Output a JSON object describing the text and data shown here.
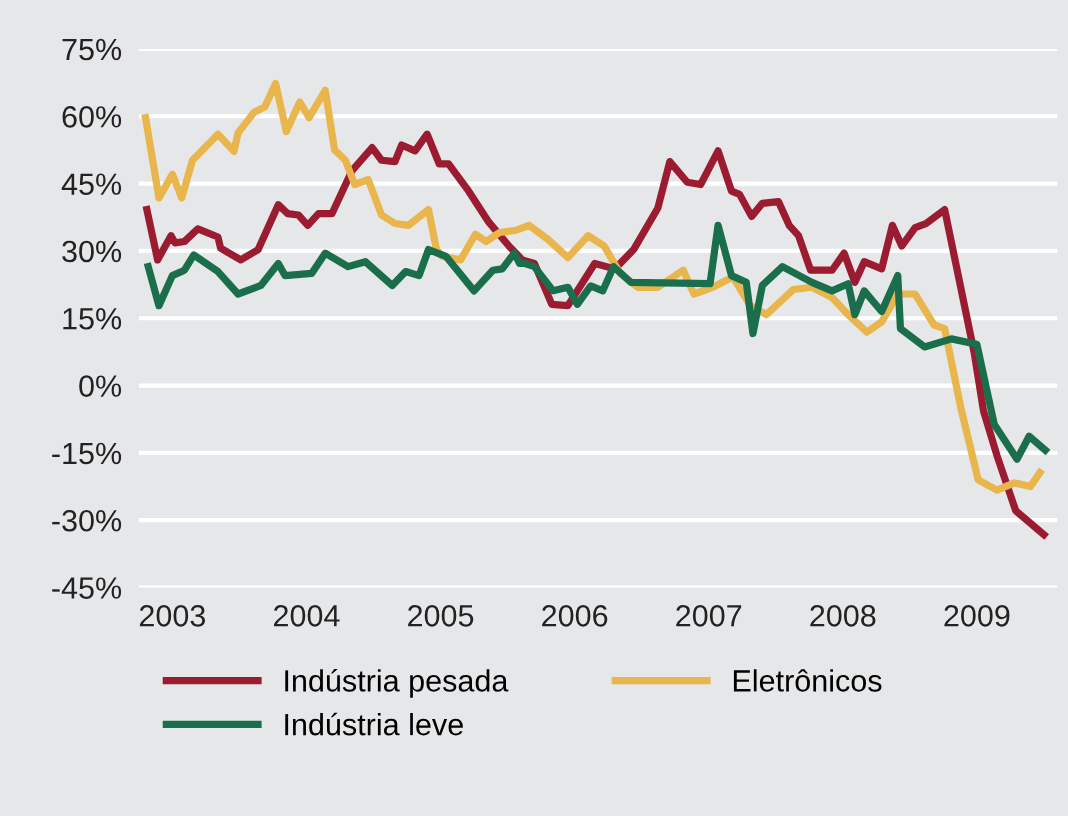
{
  "chart_data": {
    "type": "line",
    "xlim": [
      2002.75,
      2009.6
    ],
    "xticks": [
      2003,
      2004,
      2005,
      2006,
      2007,
      2008,
      2009
    ],
    "ylim": [
      -45,
      75
    ],
    "yticks": [
      {
        "value": 75,
        "label": "75%"
      },
      {
        "value": 60,
        "label": "60%"
      },
      {
        "value": 45,
        "label": "45%"
      },
      {
        "value": 30,
        "label": "30%"
      },
      {
        "value": 15,
        "label": "15%"
      },
      {
        "value": 0,
        "label": "0%"
      },
      {
        "value": -15,
        "label": "-15%"
      },
      {
        "value": -30,
        "label": "-30%"
      },
      {
        "value": -45,
        "label": "-45%"
      }
    ],
    "grid": "y",
    "legend": "bottom",
    "marker": "none",
    "line_style": "solid",
    "series": [
      {
        "name": "Indústria pesada",
        "color": "#9b1b30",
        "x": [
          2002.81,
          2002.89,
          2002.99,
          2003.02,
          2003.09,
          2003.19,
          2003.34,
          2003.36,
          2003.51,
          2003.64,
          2003.79,
          2003.86,
          2003.94,
          2004.01,
          2004.09,
          2004.19,
          2004.34,
          2004.49,
          2004.56,
          2004.66,
          2004.71,
          2004.81,
          2004.9,
          2004.99,
          2005.06,
          2005.21,
          2005.36,
          2005.51,
          2005.61,
          2005.7,
          2005.83,
          2005.95,
          2006.15,
          2006.3,
          2006.44,
          2006.62,
          2006.71,
          2006.84,
          2006.94,
          2007.07,
          2007.17,
          2007.23,
          2007.32,
          2007.4,
          2007.52,
          2007.6,
          2007.67,
          2007.76,
          2007.92,
          2008.01,
          2008.09,
          2008.16,
          2008.29,
          2008.37,
          2008.44,
          2008.54,
          2008.62,
          2008.76,
          2008.98,
          2009.05,
          2009.15,
          2009.29,
          2009.5
        ],
        "values": [
          39.2,
          28.0,
          33.4,
          31.8,
          32.1,
          34.9,
          33.1,
          30.6,
          28.0,
          30.3,
          40.3,
          38.3,
          38.0,
          35.7,
          38.3,
          38.3,
          47.9,
          53.0,
          50.2,
          49.9,
          53.6,
          52.3,
          56.0,
          49.4,
          49.4,
          43.3,
          36.4,
          31.1,
          28.0,
          27.2,
          18.1,
          17.8,
          27.2,
          26.0,
          30.3,
          39.5,
          49.9,
          45.3,
          44.8,
          52.3,
          43.3,
          42.6,
          37.7,
          40.6,
          41.0,
          35.7,
          33.4,
          25.7,
          25.7,
          29.5,
          23.0,
          27.6,
          26.0,
          35.7,
          31.1,
          35.2,
          36.1,
          39.2,
          7.3,
          -5.7,
          -15.6,
          -27.9,
          -33.2
        ]
      },
      {
        "name": "Eletrônicos",
        "color": "#e8b64c",
        "x": [
          2002.8,
          2002.9,
          2003.0,
          2003.07,
          2003.15,
          2003.34,
          2003.46,
          2003.49,
          2003.61,
          2003.69,
          2003.77,
          2003.85,
          2003.95,
          2004.02,
          2004.14,
          2004.21,
          2004.29,
          2004.36,
          2004.46,
          2004.56,
          2004.66,
          2004.76,
          2004.91,
          2004.97,
          2005.01,
          2005.15,
          2005.26,
          2005.34,
          2005.44,
          2005.56,
          2005.66,
          2005.8,
          2005.95,
          2006.1,
          2006.22,
          2006.34,
          2006.47,
          2006.62,
          2006.81,
          2006.89,
          2007.03,
          2007.18,
          2007.31,
          2007.43,
          2007.63,
          2007.77,
          2007.92,
          2008.04,
          2008.18,
          2008.29,
          2008.41,
          2008.54,
          2008.68,
          2008.76,
          2008.88,
          2009.01,
          2009.15,
          2009.28,
          2009.4,
          2009.47
        ],
        "values": [
          59.7,
          41.8,
          47.1,
          41.8,
          50.2,
          56.0,
          52.2,
          56.3,
          60.9,
          62.1,
          67.3,
          56.6,
          63.2,
          59.7,
          65.8,
          52.5,
          50.2,
          44.8,
          45.9,
          38.0,
          36.1,
          35.7,
          39.2,
          30.3,
          28.8,
          28.0,
          33.7,
          32.1,
          34.1,
          34.6,
          35.7,
          32.6,
          28.5,
          33.4,
          31.1,
          25.0,
          21.9,
          21.9,
          25.7,
          20.4,
          21.9,
          24.2,
          17.8,
          15.8,
          21.4,
          21.9,
          19.6,
          15.8,
          11.9,
          14.2,
          20.4,
          20.4,
          13.5,
          12.7,
          -4.9,
          -21.0,
          -23.3,
          -21.7,
          -22.5,
          -19.4
        ]
      },
      {
        "name": "Indústria leve",
        "color": "#1b6e4b",
        "x": [
          2002.82,
          2002.9,
          2003.0,
          2003.09,
          2003.16,
          2003.34,
          2003.49,
          2003.66,
          2003.79,
          2003.84,
          2004.04,
          2004.14,
          2004.31,
          2004.44,
          2004.64,
          2004.74,
          2004.84,
          2004.91,
          2005.04,
          2005.25,
          2005.39,
          2005.46,
          2005.55,
          2005.59,
          2005.63,
          2005.7,
          2005.84,
          2005.95,
          2006.02,
          2006.12,
          2006.21,
          2006.29,
          2006.42,
          2007.01,
          2007.07,
          2007.17,
          2007.28,
          2007.33,
          2007.4,
          2007.55,
          2007.77,
          2007.92,
          2008.04,
          2008.09,
          2008.16,
          2008.29,
          2008.41,
          2008.43,
          2008.61,
          2008.81,
          2009.0,
          2009.13,
          2009.3,
          2009.39,
          2009.51
        ],
        "values": [
          26.5,
          17.8,
          24.5,
          25.7,
          29.1,
          25.4,
          20.4,
          22.3,
          27.2,
          24.5,
          25.0,
          29.5,
          26.5,
          27.6,
          22.3,
          25.4,
          24.5,
          30.3,
          28.8,
          21.1,
          25.7,
          26.0,
          29.5,
          27.2,
          27.2,
          26.5,
          21.1,
          21.9,
          18.1,
          22.2,
          21.1,
          26.5,
          23.0,
          22.7,
          35.7,
          24.5,
          23.0,
          11.6,
          22.3,
          26.5,
          23.0,
          21.1,
          22.7,
          15.8,
          21.1,
          16.5,
          24.5,
          12.7,
          8.6,
          10.4,
          9.2,
          -8.7,
          -16.4,
          -11.3,
          -14.4
        ]
      }
    ]
  }
}
